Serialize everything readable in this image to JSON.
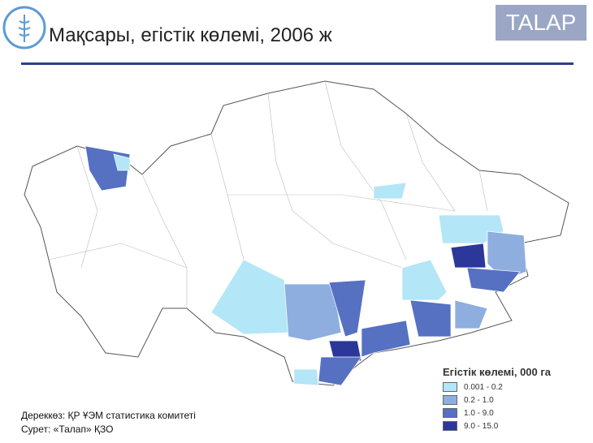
{
  "header": {
    "title": "Мақсары, егістік көлемі, 2006 ж",
    "brand": "TALAP"
  },
  "legend": {
    "title": "Егістік көлемі, 000 га",
    "items": [
      {
        "label": "0.001 - 0.2",
        "color": "#b3e6f6"
      },
      {
        "label": "0.2 - 1.0",
        "color": "#8eaee0"
      },
      {
        "label": "1.0 - 9.0",
        "color": "#5670c2"
      },
      {
        "label": "9.0 - 15.0",
        "color": "#2b3799"
      }
    ]
  },
  "footer": {
    "source": "Дереккөз: ҚР ҰЭМ статистика комитеті",
    "credit": "Сурет: «Талап» ҚЗО"
  }
}
